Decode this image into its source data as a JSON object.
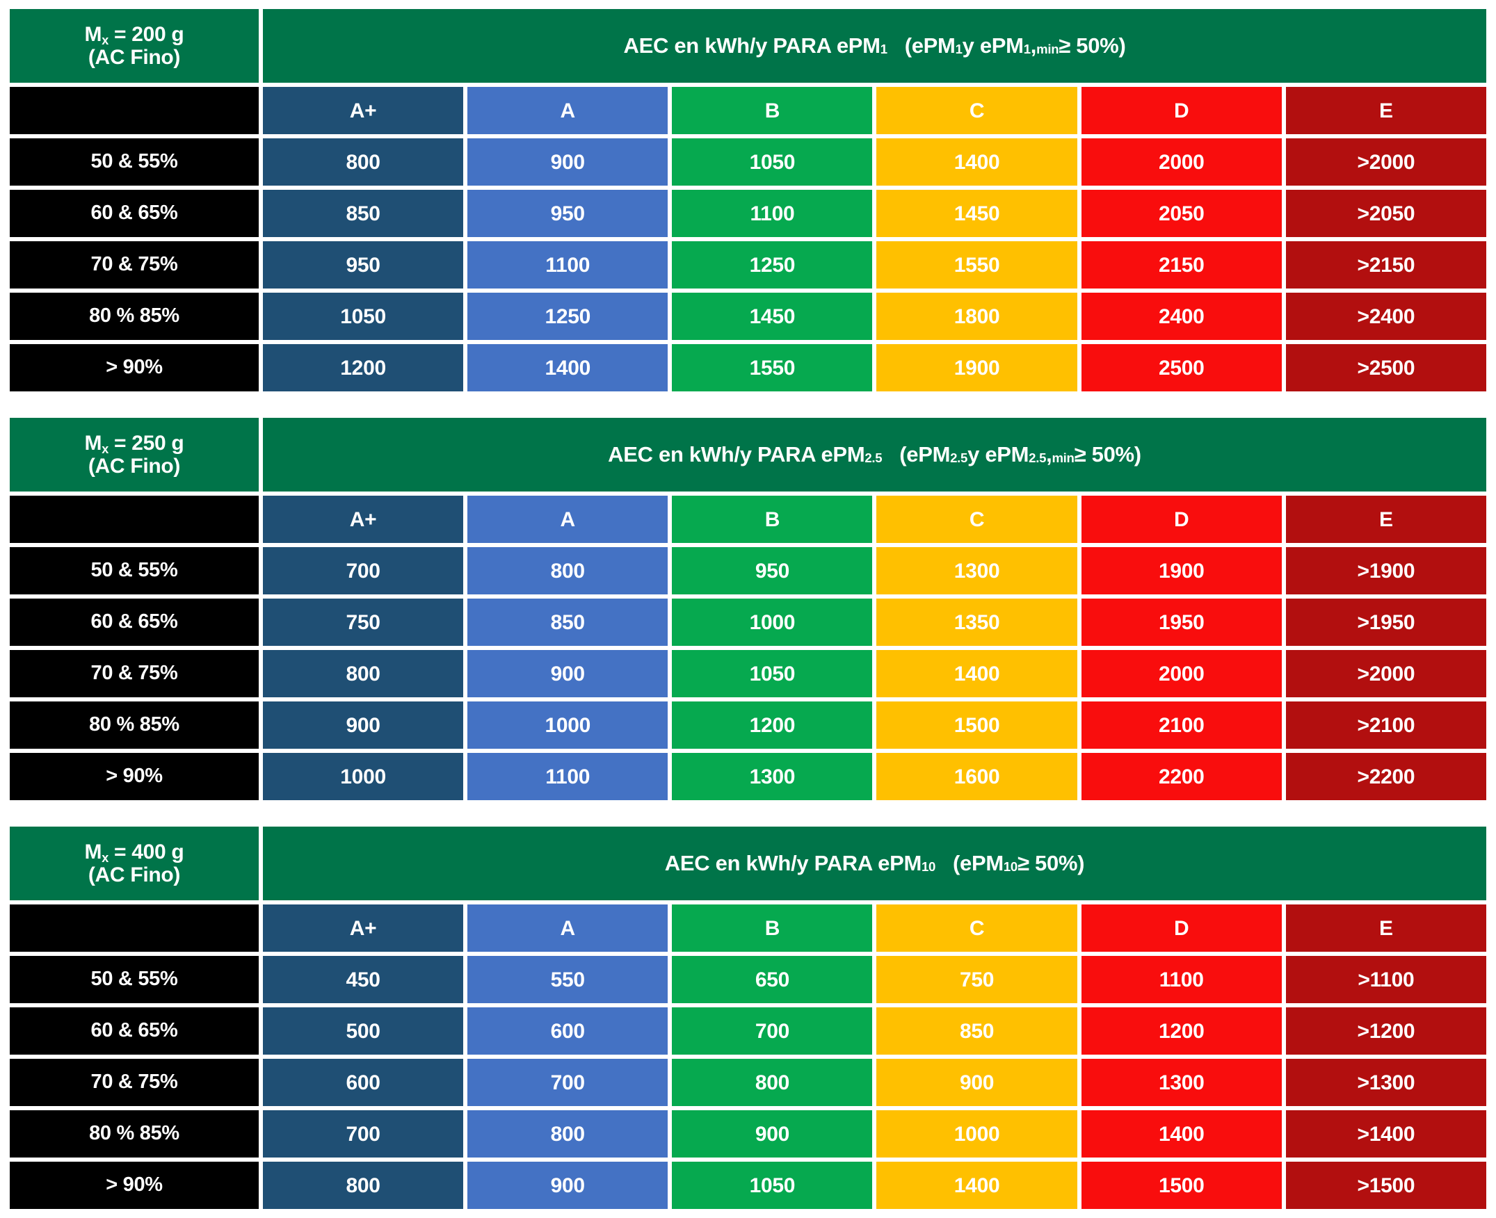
{
  "colors": {
    "header_green": "#007449",
    "row_label_black": "#000000",
    "grade_a_plus": "#1F4F74",
    "grade_a": "#4472C4",
    "grade_b": "#06A94F",
    "grade_c": "#FFC000",
    "grade_d": "#F90D0D",
    "grade_e": "#B20F0F",
    "text_white": "#FFFFFF"
  },
  "grade_headers": [
    "A+",
    "A",
    "B",
    "C",
    "D",
    "E"
  ],
  "grade_keys": [
    "a-plus",
    "a",
    "b",
    "c",
    "d",
    "e"
  ],
  "tables": [
    {
      "mass_parts": [
        {
          "t": "M"
        },
        {
          "t": "x",
          "sub": true
        },
        {
          "t": " = 200 g"
        }
      ],
      "mass_line2": "(AC Fino)",
      "title_parts": [
        {
          "t": "AEC en kWh/y PARA ePM"
        },
        {
          "t": "1",
          "sub": true
        },
        {
          "t": "   (ePM"
        },
        {
          "t": "1",
          "sub": true
        },
        {
          "t": " y ePM"
        },
        {
          "t": "1",
          "sub": true
        },
        {
          "t": ","
        },
        {
          "t": "min",
          "sub": true
        },
        {
          "t": " ≥ 50%)"
        }
      ],
      "rows": [
        {
          "label": "50 & 55%",
          "values": [
            "800",
            "900",
            "1050",
            "1400",
            "2000",
            ">2000"
          ]
        },
        {
          "label": "60 & 65%",
          "values": [
            "850",
            "950",
            "1100",
            "1450",
            "2050",
            ">2050"
          ]
        },
        {
          "label": "70 & 75%",
          "values": [
            "950",
            "1100",
            "1250",
            "1550",
            "2150",
            ">2150"
          ]
        },
        {
          "label": "80 % 85%",
          "values": [
            "1050",
            "1250",
            "1450",
            "1800",
            "2400",
            ">2400"
          ]
        },
        {
          "label": "> 90%",
          "values": [
            "1200",
            "1400",
            "1550",
            "1900",
            "2500",
            ">2500"
          ]
        }
      ]
    },
    {
      "mass_parts": [
        {
          "t": "M"
        },
        {
          "t": "x",
          "sub": true
        },
        {
          "t": " = 250 g"
        }
      ],
      "mass_line2": "(AC Fino)",
      "title_parts": [
        {
          "t": "AEC en kWh/y PARA ePM"
        },
        {
          "t": "2.5",
          "sub": true
        },
        {
          "t": "   (ePM"
        },
        {
          "t": "2.5",
          "sub": true
        },
        {
          "t": " y ePM"
        },
        {
          "t": "2.5",
          "sub": true
        },
        {
          "t": ","
        },
        {
          "t": "min",
          "sub": true
        },
        {
          "t": " ≥ 50%)"
        }
      ],
      "rows": [
        {
          "label": "50 & 55%",
          "values": [
            "700",
            "800",
            "950",
            "1300",
            "1900",
            ">1900"
          ]
        },
        {
          "label": "60 & 65%",
          "values": [
            "750",
            "850",
            "1000",
            "1350",
            "1950",
            ">1950"
          ]
        },
        {
          "label": "70 & 75%",
          "values": [
            "800",
            "900",
            "1050",
            "1400",
            "2000",
            ">2000"
          ]
        },
        {
          "label": "80 % 85%",
          "values": [
            "900",
            "1000",
            "1200",
            "1500",
            "2100",
            ">2100"
          ]
        },
        {
          "label": "> 90%",
          "values": [
            "1000",
            "1100",
            "1300",
            "1600",
            "2200",
            ">2200"
          ]
        }
      ]
    },
    {
      "mass_parts": [
        {
          "t": "M"
        },
        {
          "t": "x",
          "sub": true
        },
        {
          "t": " = 400 g"
        }
      ],
      "mass_line2": "(AC Fino)",
      "title_parts": [
        {
          "t": "AEC en kWh/y PARA ePM"
        },
        {
          "t": "10",
          "sub": true
        },
        {
          "t": "   (ePM"
        },
        {
          "t": "10",
          "sub": true
        },
        {
          "t": "≥ 50%)"
        }
      ],
      "rows": [
        {
          "label": "50 & 55%",
          "values": [
            "450",
            "550",
            "650",
            "750",
            "1100",
            ">1100"
          ]
        },
        {
          "label": "60 & 65%",
          "values": [
            "500",
            "600",
            "700",
            "850",
            "1200",
            ">1200"
          ]
        },
        {
          "label": "70 & 75%",
          "values": [
            "600",
            "700",
            "800",
            "900",
            "1300",
            ">1300"
          ]
        },
        {
          "label": "80 % 85%",
          "values": [
            "700",
            "800",
            "900",
            "1000",
            "1400",
            ">1400"
          ]
        },
        {
          "label": "> 90%",
          "values": [
            "800",
            "900",
            "1050",
            "1400",
            "1500",
            ">1500"
          ]
        }
      ]
    }
  ]
}
